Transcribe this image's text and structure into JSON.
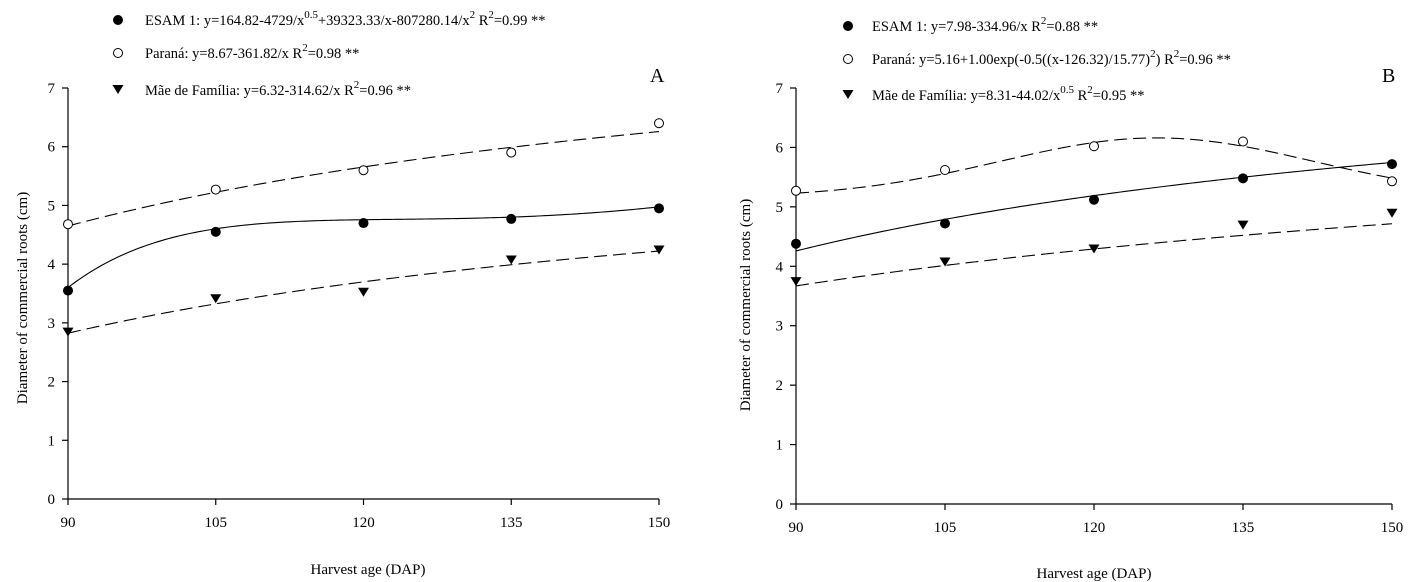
{
  "chart_data": [
    {
      "type": "scatter",
      "panel_label": "A",
      "xlabel": "Harvest age (DAP)",
      "ylabel": "Diameter of commercial roots (cm)",
      "xlim": [
        90,
        150
      ],
      "ylim": [
        0,
        7
      ],
      "x_ticks": [
        90,
        105,
        120,
        135,
        150
      ],
      "y_ticks": [
        0,
        1,
        2,
        3,
        4,
        5,
        6,
        7
      ],
      "legend_position": "top-left",
      "grid": false,
      "x": [
        90,
        105,
        120,
        135,
        150
      ],
      "series": [
        {
          "name": "ESAM 1",
          "marker": "filled-circle",
          "line_style": "solid",
          "values": [
            3.55,
            4.55,
            4.7,
            4.77,
            4.95
          ],
          "equation": "y=164.82-4729/x^0.5+39323.33/x-807280.14/x^2",
          "equation_text": "y=164.82-4729/x",
          "equation_exponent_1": "0.5",
          "equation_text_2": "+39323.33/x-807280.14/x",
          "equation_exponent_2": "2",
          "r2_label": "R",
          "r2_exponent": "2",
          "r2_value": "=0.99 **"
        },
        {
          "name": "Paraná",
          "marker": "open-circle",
          "line_style": "dashed",
          "values": [
            4.68,
            5.27,
            5.6,
            5.9,
            6.4
          ],
          "equation": "y=8.67-361.82/x",
          "equation_text": "y=8.67-361.82/x",
          "r2_label": "R",
          "r2_exponent": "2",
          "r2_value": "=0.98 **"
        },
        {
          "name": "Mãe de Família",
          "marker": "filled-triangle-down",
          "line_style": "dashed",
          "values": [
            2.85,
            3.42,
            3.53,
            4.08,
            4.25
          ],
          "equation": "y=6.32-314.62/x",
          "equation_text": "y=6.32-314.62/x",
          "r2_label": "R",
          "r2_exponent": "2",
          "r2_value": "=0.96 **"
        }
      ]
    },
    {
      "type": "scatter",
      "panel_label": "B",
      "xlabel": "Harvest age (DAP)",
      "ylabel": "Diameter of commercial roots (cm)",
      "xlim": [
        90,
        150
      ],
      "ylim": [
        0,
        7
      ],
      "x_ticks": [
        90,
        105,
        120,
        135,
        150
      ],
      "y_ticks": [
        0,
        1,
        2,
        3,
        4,
        5,
        6,
        7
      ],
      "legend_position": "top-left",
      "grid": false,
      "x": [
        90,
        105,
        120,
        135,
        150
      ],
      "series": [
        {
          "name": "ESAM 1",
          "marker": "filled-circle",
          "line_style": "solid",
          "values": [
            4.38,
            4.72,
            5.12,
            5.48,
            5.72
          ],
          "equation": "y=7.98-334.96/x",
          "equation_text": "y=7.98-334.96/x",
          "r2_label": "R",
          "r2_exponent": "2",
          "r2_value": "=0.88 **"
        },
        {
          "name": "Paraná",
          "marker": "open-circle",
          "line_style": "dashed",
          "values": [
            5.27,
            5.62,
            6.02,
            6.1,
            5.43
          ],
          "equation": "y=5.16+1.00exp(-0.5((x-126.32)/15.77)^2)",
          "equation_text": "y=5.16+1.00exp(-0.5((x-126.32)/15.77)",
          "equation_exponent_1": "2",
          "equation_tail": ")",
          "r2_label": "R",
          "r2_exponent": "2",
          "r2_value": "=0.96 **"
        },
        {
          "name": "Mãe de Família",
          "marker": "filled-triangle-down",
          "line_style": "dashed",
          "values": [
            3.75,
            4.08,
            4.3,
            4.7,
            4.9
          ],
          "equation": "y=8.31-44.02/x^0.5",
          "equation_text": "y=8.31-44.02/x",
          "equation_exponent_1": "0.5",
          "r2_label": "R",
          "r2_exponent": "2",
          "r2_value": "=0.95 **"
        }
      ]
    }
  ]
}
